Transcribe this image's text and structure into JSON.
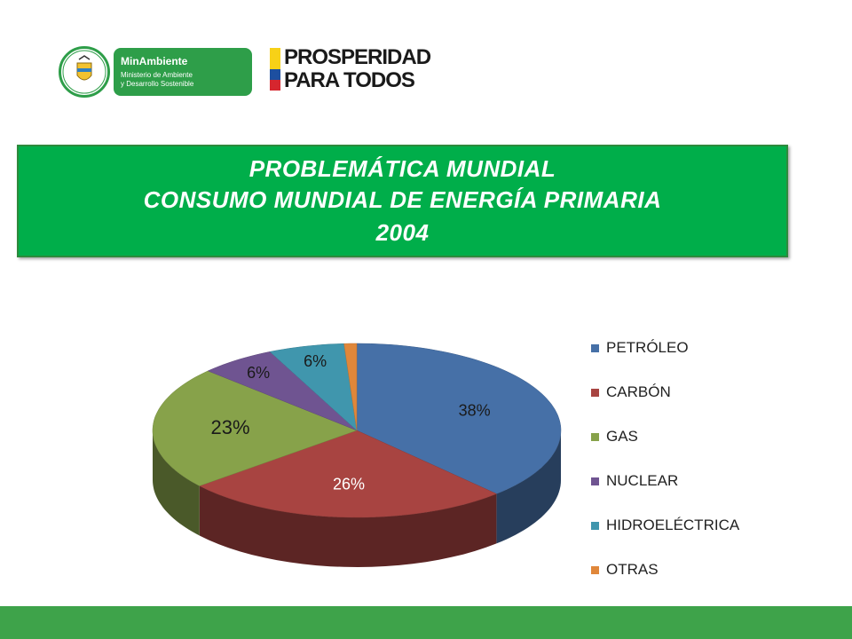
{
  "header": {
    "ministry_name": "MinAmbiente",
    "ministry_sub_1": "Ministerio de Ambiente",
    "ministry_sub_2": "y Desarrollo Sostenible",
    "slogan_line_1": "PROSPERIDAD",
    "slogan_line_2": "PARA TODOS"
  },
  "title": {
    "line1": "PROBLEMÁTICA MUNDIAL",
    "line2": "CONSUMO MUNDIAL DE ENERGÍA PRIMARIA",
    "line3": "2004"
  },
  "colors": {
    "title_bg": "#00ae4a",
    "footer": "#3ea34a",
    "ministry_green": "#2e9e49"
  },
  "chart_data": {
    "type": "pie",
    "style": "3d",
    "legend_position": "right",
    "categories": [
      "PETRÓLEO",
      "CARBÓN",
      "GAS",
      "NUCLEAR",
      "HIDROELÉCTRICA",
      "OTRAS"
    ],
    "values": [
      38,
      26,
      23,
      6,
      6,
      1
    ],
    "labels": [
      "38%",
      "26%",
      "23%",
      "6%",
      "6%",
      ""
    ],
    "colors": [
      "#4670a7",
      "#a84441",
      "#87a24a",
      "#6f5491",
      "#4096ad",
      "#e0873a"
    ]
  }
}
